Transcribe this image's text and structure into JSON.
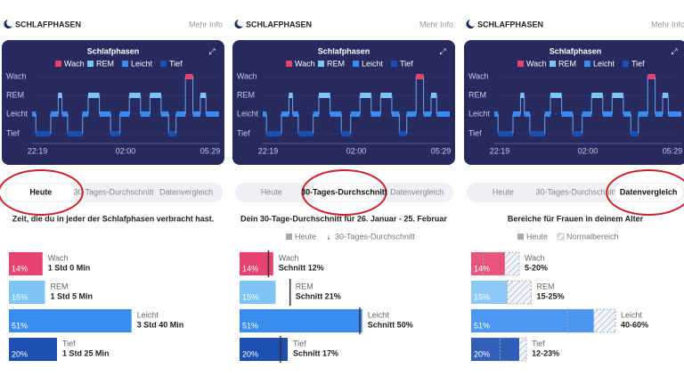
{
  "panels": [
    {
      "header": {
        "title": "SCHLAFPHASEN",
        "link": "Mehr Info"
      },
      "card": {
        "title": "Schlafphasen",
        "levels": [
          "Wach",
          "REM",
          "Leicht",
          "Tief"
        ],
        "times": [
          "22:19",
          "02:00",
          "05:29"
        ]
      },
      "tabs": [
        {
          "label": "Heute",
          "selected": true
        },
        {
          "label": "30-Tages-Durchschnitt",
          "selected": false
        },
        {
          "label": "Datenvergleich",
          "selected": false
        }
      ],
      "subtitle": "Zeit, die du in jeder der Schlafphasen verbracht hast.",
      "stages": [
        {
          "name": "Wach",
          "color": "#e8426f",
          "percent": 14,
          "percent_label": "14%",
          "detail": "1 Std 0 Min"
        },
        {
          "name": "REM",
          "color": "#7ec4f5",
          "percent": 15,
          "percent_label": "15%",
          "detail": "1 Std 5 Min"
        },
        {
          "name": "Leicht",
          "color": "#3b8cf0",
          "percent": 51,
          "percent_label": "51%",
          "detail": "3 Std 40 Min"
        },
        {
          "name": "Tief",
          "color": "#1c4fb0",
          "percent": 20,
          "percent_label": "20%",
          "detail": "1 Std 25 Min"
        }
      ]
    },
    {
      "header": {
        "title": "SCHLAFPHASEN",
        "link": "Mehr Info"
      },
      "card": {
        "title": "Schlafphasen",
        "levels": [
          "Wach",
          "REM",
          "Leicht",
          "Tief"
        ],
        "times": [
          "22:19",
          "02:00",
          "05:29"
        ]
      },
      "tabs": [
        {
          "label": "Heute",
          "selected": false
        },
        {
          "label": "30-Tages-Durchschnitt",
          "selected": true
        },
        {
          "label": "Datenvergleich",
          "selected": false
        }
      ],
      "subtitle": "Dein 30-Tage-Durchschnitt für 26. Januar - 25. Februar",
      "legend": [
        "Heute",
        "30-Tages-Durchschnitt"
      ],
      "stages": [
        {
          "name": "Wach",
          "color": "#e8426f",
          "percent": 14,
          "percent_label": "14%",
          "detail": "Schnitt 12%",
          "average": 12
        },
        {
          "name": "REM",
          "color": "#7ec4f5",
          "percent": 15,
          "percent_label": "15%",
          "detail": "Schnitt 21%",
          "average": 21
        },
        {
          "name": "Leicht",
          "color": "#3b8cf0",
          "percent": 51,
          "percent_label": "51%",
          "detail": "Schnitt 50%",
          "average": 50
        },
        {
          "name": "Tief",
          "color": "#1c4fb0",
          "percent": 20,
          "percent_label": "20%",
          "detail": "Schnitt 17%",
          "average": 17
        }
      ]
    },
    {
      "header": {
        "title": "SCHLAFPHASEN",
        "link": "Mehr Info"
      },
      "card": {
        "title": "Schlafphasen",
        "levels": [
          "Wach",
          "REM",
          "Leicht",
          "Tief"
        ],
        "times": [
          "22:19",
          "02:00",
          "05:29"
        ]
      },
      "tabs": [
        {
          "label": "Heute",
          "selected": false
        },
        {
          "label": "30-Tages-Durchschnitt",
          "selected": false
        },
        {
          "label": "Datenvergleich",
          "selected": true
        }
      ],
      "subtitle": "Bereiche für Frauen in deinem Alter",
      "legend": [
        "Heute",
        "Normalbereich"
      ],
      "stages": [
        {
          "name": "Wach",
          "color": "#e8426f",
          "percent": 14,
          "percent_label": "14%",
          "detail": "5-20%",
          "range": [
            5,
            20
          ]
        },
        {
          "name": "REM",
          "color": "#7ec4f5",
          "percent": 15,
          "percent_label": "15%",
          "detail": "15-25%",
          "range": [
            15,
            25
          ]
        },
        {
          "name": "Leicht",
          "color": "#3b8cf0",
          "percent": 51,
          "percent_label": "51%",
          "detail": "40-60%",
          "range": [
            40,
            60
          ]
        },
        {
          "name": "Tief",
          "color": "#1c4fb0",
          "percent": 20,
          "percent_label": "20%",
          "detail": "12-23%",
          "range": [
            12,
            23
          ]
        }
      ]
    }
  ]
}
